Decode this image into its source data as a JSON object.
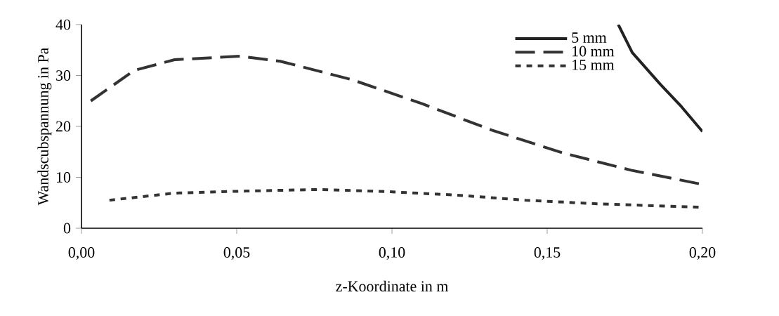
{
  "chart_data": {
    "type": "line",
    "xlabel": "z-Koordinate in m",
    "ylabel": "Wandscubspannung in Pa",
    "xlim": [
      0,
      0.2
    ],
    "ylim": [
      0,
      40
    ],
    "xticks": [
      {
        "value": 0,
        "label": "0,00"
      },
      {
        "value": 0.05,
        "label": "0,05"
      },
      {
        "value": 0.1,
        "label": "0,10"
      },
      {
        "value": 0.15,
        "label": "0,15"
      },
      {
        "value": 0.2,
        "label": "0,20"
      }
    ],
    "yticks": [
      0,
      10,
      20,
      30,
      40
    ],
    "legend": "top right",
    "grid": false,
    "marker": "none",
    "series": [
      {
        "name": "5 mm",
        "color": "#222222",
        "line_style": "solid",
        "x": [
          0.1729,
          0.1774,
          0.1864,
          0.1932,
          0.2
        ],
        "values": [
          40,
          34.5,
          28.3,
          23.9,
          19
        ]
      },
      {
        "name": "10 mm",
        "color": "#333333",
        "line_style": "dashed",
        "x": [
          0.003,
          0.017,
          0.03,
          0.051,
          0.064,
          0.087,
          0.11,
          0.132,
          0.155,
          0.177,
          0.2
        ],
        "values": [
          25,
          31,
          33.1,
          33.8,
          32.8,
          29.2,
          24.4,
          19.3,
          14.8,
          11.4,
          8.6
        ]
      },
      {
        "name": "15 mm",
        "color": "#333333",
        "line_style": "dotted",
        "x": [
          0.009,
          0.03,
          0.053,
          0.076,
          0.098,
          0.121,
          0.143,
          0.166,
          0.2
        ],
        "values": [
          5.5,
          6.9,
          7.3,
          7.6,
          7.2,
          6.5,
          5.5,
          4.8,
          4.1
        ]
      }
    ]
  }
}
